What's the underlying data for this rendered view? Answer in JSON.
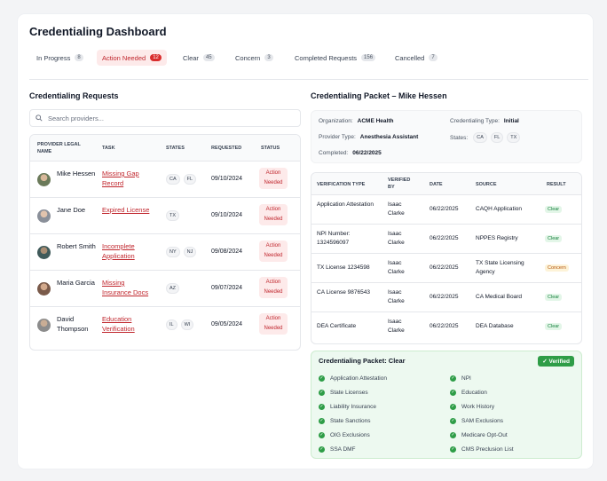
{
  "page": {
    "title": "Credentialing Dashboard"
  },
  "tabs": [
    {
      "label": "In Progress",
      "count": "8"
    },
    {
      "label": "Action Needed",
      "count": "12"
    },
    {
      "label": "Clear",
      "count": "45"
    },
    {
      "label": "Concern",
      "count": "3"
    },
    {
      "label": "Completed Requests",
      "count": "156"
    },
    {
      "label": "Cancelled",
      "count": "7"
    }
  ],
  "requests": {
    "title": "Credentialing Requests",
    "search_placeholder": "Search providers...",
    "headers": {
      "name": "PROVIDER LEGAL NAME",
      "task": "TASK",
      "states": "STATES",
      "requested": "REQUESTED",
      "status": "STATUS"
    },
    "rows": [
      {
        "name": "Mike Hessen",
        "task": "Missing Gap Record",
        "states": [
          "CA",
          "FL"
        ],
        "requested": "09/10/2024",
        "status": "Action Needed"
      },
      {
        "name": "Jane Doe",
        "task": "Expired License",
        "states": [
          "TX"
        ],
        "requested": "09/10/2024",
        "status": "Action Needed"
      },
      {
        "name": "Robert Smith",
        "task": "Incomplete Application",
        "states": [
          "NY",
          "NJ"
        ],
        "requested": "09/08/2024",
        "status": "Action Needed"
      },
      {
        "name": "Maria Garcia",
        "task": "Missing Insurance Docs",
        "states": [
          "AZ"
        ],
        "requested": "09/07/2024",
        "status": "Action Needed"
      },
      {
        "name": "David Thompson",
        "task": "Education Verification",
        "states": [
          "IL",
          "WI"
        ],
        "requested": "09/05/2024",
        "status": "Action Needed"
      }
    ]
  },
  "packet": {
    "title": "Credentialing Packet – Mike Hessen",
    "info": {
      "organization_label": "Organization:",
      "organization": "ACME Health",
      "type_label": "Credentialing Type:",
      "type": "Initial",
      "provider_type_label": "Provider Type:",
      "provider_type": "Anesthesia Assistant",
      "states_label": "States:",
      "states": [
        "CA",
        "FL",
        "TX"
      ],
      "completed_label": "Completed:",
      "completed": "06/22/2025"
    },
    "headers": {
      "type": "VERIFICATION TYPE",
      "by": "VERIFIED BY",
      "date": "DATE",
      "source": "SOURCE",
      "result": "RESULT"
    },
    "rows": [
      {
        "type": "Application Attestation",
        "by": "Isaac Clarke",
        "date": "06/22/2025",
        "source": "CAQH Application",
        "result": "Clear"
      },
      {
        "type": "NPI Number: 1324596097",
        "by": "Isaac Clarke",
        "date": "06/22/2025",
        "source": "NPPES Registry",
        "result": "Clear"
      },
      {
        "type": "TX License 1234598",
        "by": "Isaac Clarke",
        "date": "06/22/2025",
        "source": "TX State Licensing Agency",
        "result": "Concern"
      },
      {
        "type": "CA License 9876543",
        "by": "Isaac Clarke",
        "date": "06/22/2025",
        "source": "CA Medical Board",
        "result": "Clear"
      },
      {
        "type": "DEA Certificate",
        "by": "Isaac Clarke",
        "date": "06/22/2025",
        "source": "DEA Database",
        "result": "Clear"
      }
    ],
    "summary": {
      "title": "Credentialing Packet: Clear",
      "badge": "Verified",
      "left_items": [
        "Application Attestation",
        "State Licenses",
        "Liability Insurance",
        "State Sanctions",
        "OIG Exclusions",
        "SSA DMF"
      ],
      "right_items": [
        "NPI",
        "Education",
        "Work History",
        "SAM Exclusions",
        "Medicare Opt-Out",
        "CMS Preclusion List"
      ]
    }
  },
  "colors": {
    "accent_red": "#c0262d",
    "success_green": "#2e9d47",
    "concern_amber": "#b45309"
  }
}
